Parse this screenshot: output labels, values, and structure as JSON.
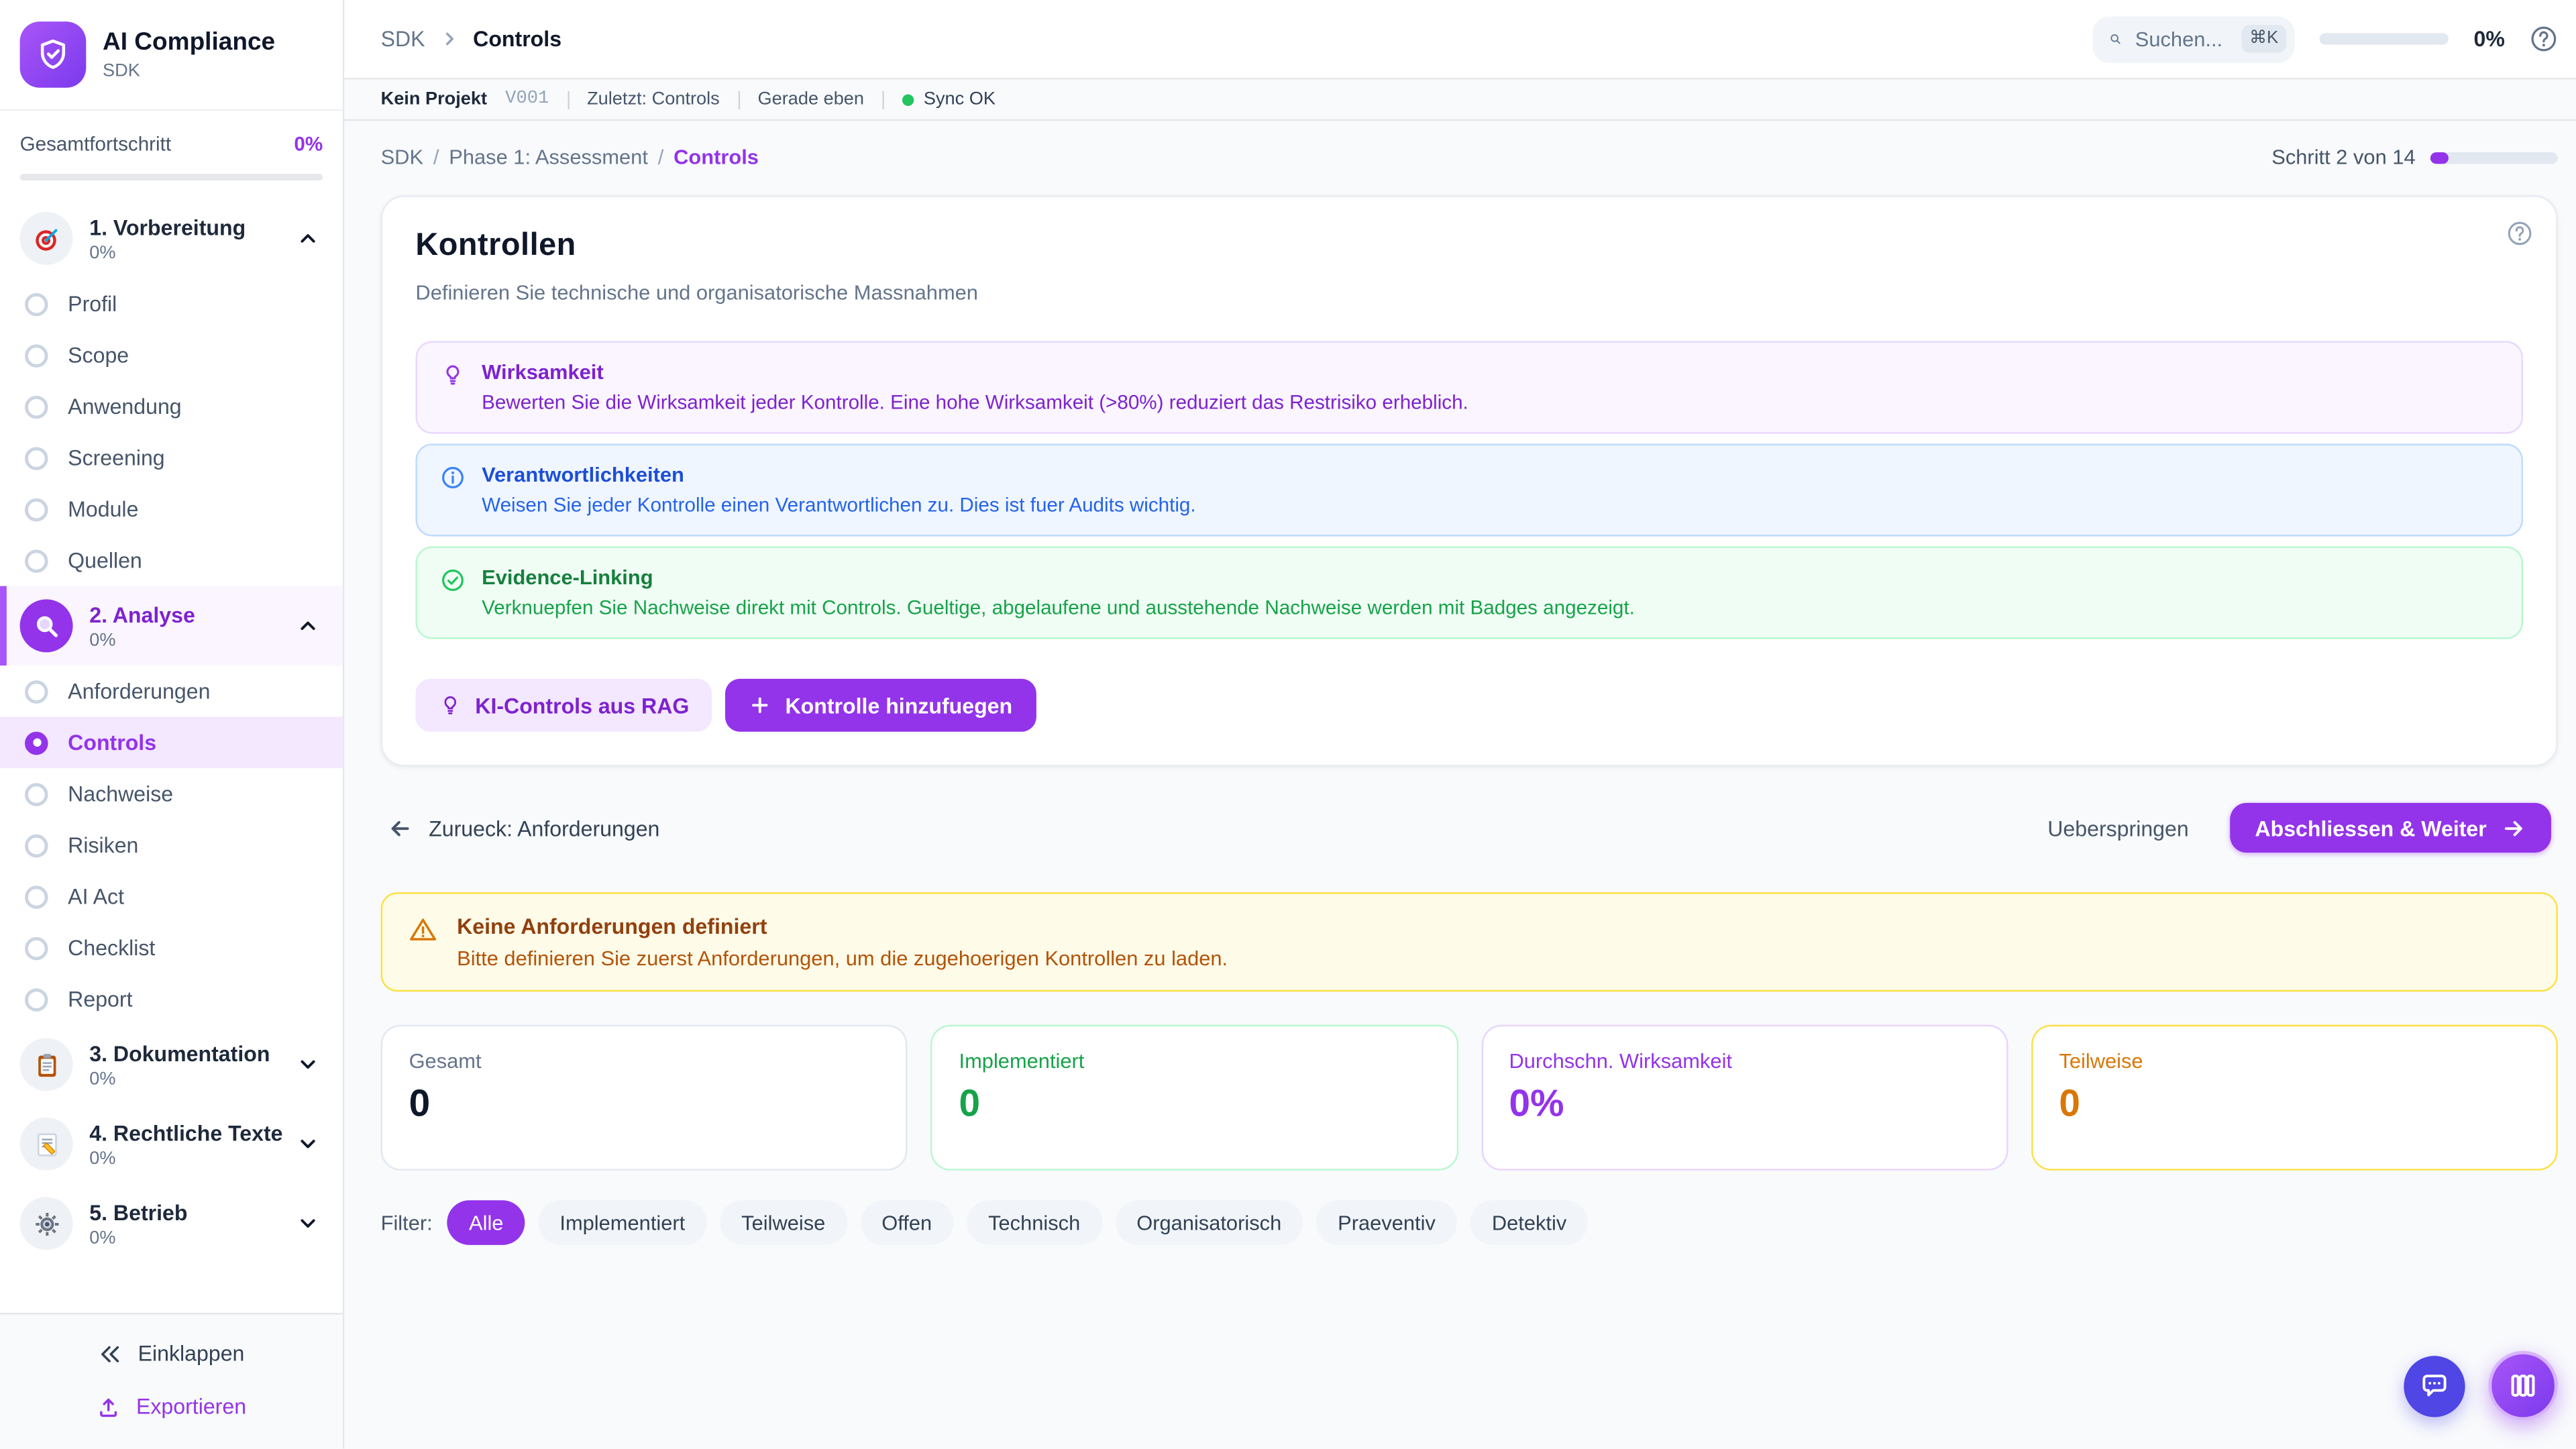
{
  "app": {
    "title": "AI Compliance",
    "subtitle": "SDK"
  },
  "sidebar": {
    "progress_label": "Gesamtfortschritt",
    "progress_value": "0%",
    "progress_percent": 0,
    "sections": [
      {
        "label": "1. Vorbereitung",
        "pct": "0%",
        "icon": "target",
        "expanded": true,
        "items": [
          {
            "label": "Profil"
          },
          {
            "label": "Scope"
          },
          {
            "label": "Anwendung"
          },
          {
            "label": "Screening"
          },
          {
            "label": "Module"
          },
          {
            "label": "Quellen"
          }
        ]
      },
      {
        "label": "2. Analyse",
        "pct": "0%",
        "icon": "magnifier",
        "icon_tint": "purple",
        "expanded": true,
        "active": true,
        "items": [
          {
            "label": "Anforderungen"
          },
          {
            "label": "Controls",
            "active": true
          },
          {
            "label": "Nachweise"
          },
          {
            "label": "Risiken"
          },
          {
            "label": "AI Act"
          },
          {
            "label": "Checklist"
          },
          {
            "label": "Report"
          }
        ]
      },
      {
        "label": "3. Dokumentation",
        "pct": "0%",
        "icon": "clipboard",
        "expanded": false,
        "items": []
      },
      {
        "label": "4. Rechtliche Texte",
        "pct": "0%",
        "icon": "memo",
        "expanded": false,
        "items": []
      },
      {
        "label": "5. Betrieb",
        "pct": "0%",
        "icon": "gear",
        "expanded": false,
        "items": []
      }
    ],
    "collapse_label": "Einklappen",
    "export_label": "Exportieren"
  },
  "topbar": {
    "breadcrumb_root": "SDK",
    "breadcrumb_current": "Controls",
    "search_placeholder": "Suchen...",
    "search_shortcut": "⌘K",
    "progress_value": "0%",
    "progress_percent": 0
  },
  "statusbar": {
    "project": "Kein Projekt",
    "version": "V001",
    "last": "Zuletzt: Controls",
    "time": "Gerade eben",
    "sync": "Sync OK"
  },
  "page": {
    "crumb1": "SDK",
    "crumb2": "Phase 1: Assessment",
    "crumb3": "Controls",
    "step_label": "Schritt 2 von 14",
    "step_current": 2,
    "step_total": 14
  },
  "card": {
    "title": "Kontrollen",
    "subtitle": "Definieren Sie technische und organisatorische Massnahmen",
    "infos": [
      {
        "tone": "purple",
        "icon": "lightbulb",
        "title": "Wirksamkeit",
        "body": "Bewerten Sie die Wirksamkeit jeder Kontrolle. Eine hohe Wirksamkeit (>80%) reduziert das Restrisiko erheblich."
      },
      {
        "tone": "blue",
        "icon": "info",
        "title": "Verantwortlichkeiten",
        "body": "Weisen Sie jeder Kontrolle einen Verantwortlichen zu. Dies ist fuer Audits wichtig."
      },
      {
        "tone": "green",
        "icon": "check",
        "title": "Evidence-Linking",
        "body": "Verknuepfen Sie Nachweise direkt mit Controls. Gueltige, abgelaufene und ausstehende Nachweise werden mit Badges angezeigt."
      }
    ],
    "ai_button": "KI-Controls aus RAG",
    "add_button": "Kontrolle hinzufuegen"
  },
  "wizard": {
    "back": "Zurueck: Anforderungen",
    "skip": "Ueberspringen",
    "next": "Abschliessen & Weiter"
  },
  "warning": {
    "title": "Keine Anforderungen definiert",
    "body": "Bitte definieren Sie zuerst Anforderungen, um die zugehoerigen Kontrollen zu laden."
  },
  "stats": [
    {
      "label": "Gesamt",
      "value": "0",
      "tone": "slate"
    },
    {
      "label": "Implementiert",
      "value": "0",
      "tone": "green"
    },
    {
      "label": "Durchschn. Wirksamkeit",
      "value": "0%",
      "tone": "purple"
    },
    {
      "label": "Teilweise",
      "value": "0",
      "tone": "amber"
    }
  ],
  "filter": {
    "label": "Filter:",
    "active": "Alle",
    "chips": [
      "Alle",
      "Implementiert",
      "Teilweise",
      "Offen",
      "Technisch",
      "Organisatorisch",
      "Praeventiv",
      "Detektiv"
    ]
  },
  "colors": {
    "accent": "#9333ea",
    "success": "#16a34a",
    "warning": "#d97706",
    "info_blue": "#2563eb",
    "sync_ok": "#22c55e"
  }
}
